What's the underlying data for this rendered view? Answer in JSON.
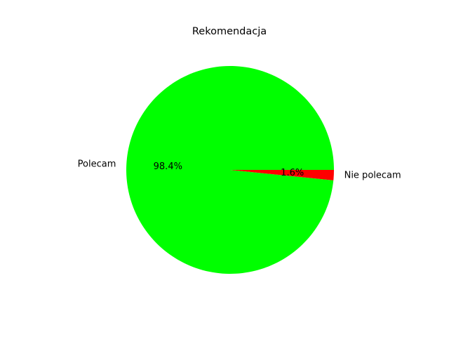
{
  "chart_data": {
    "type": "pie",
    "title": "Rekomendacja",
    "slices": [
      {
        "label": "Polecam",
        "value": 98.4,
        "pct_label": "98.4%",
        "color": "#00ff00"
      },
      {
        "label": "Nie polecam",
        "value": 1.6,
        "pct_label": "1.6%",
        "color": "#ff0000"
      }
    ]
  }
}
